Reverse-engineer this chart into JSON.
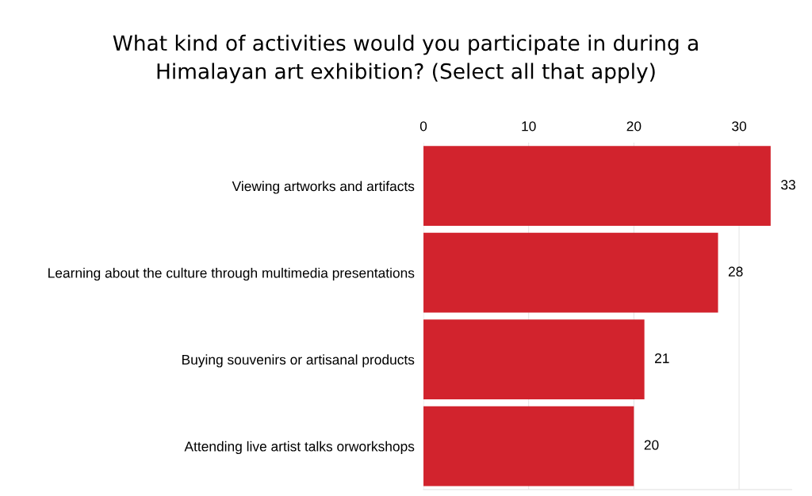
{
  "chart_data": {
    "type": "bar",
    "orientation": "horizontal",
    "title": "What kind of activities would you participate in during a\nHimalayan art exhibition? (Select all that apply)",
    "categories": [
      "Viewing artworks and artifacts",
      "Learning about the culture through multimedia presentations",
      "Buying souvenirs or artisanal products",
      "Attending live artist talks orworkshops"
    ],
    "values": [
      33,
      28,
      21,
      20
    ],
    "color": "#d2232d",
    "xlim": [
      0,
      35
    ],
    "xticks": [
      0,
      10,
      20,
      30
    ],
    "grid": "x",
    "data_labels": true,
    "legend": false
  }
}
